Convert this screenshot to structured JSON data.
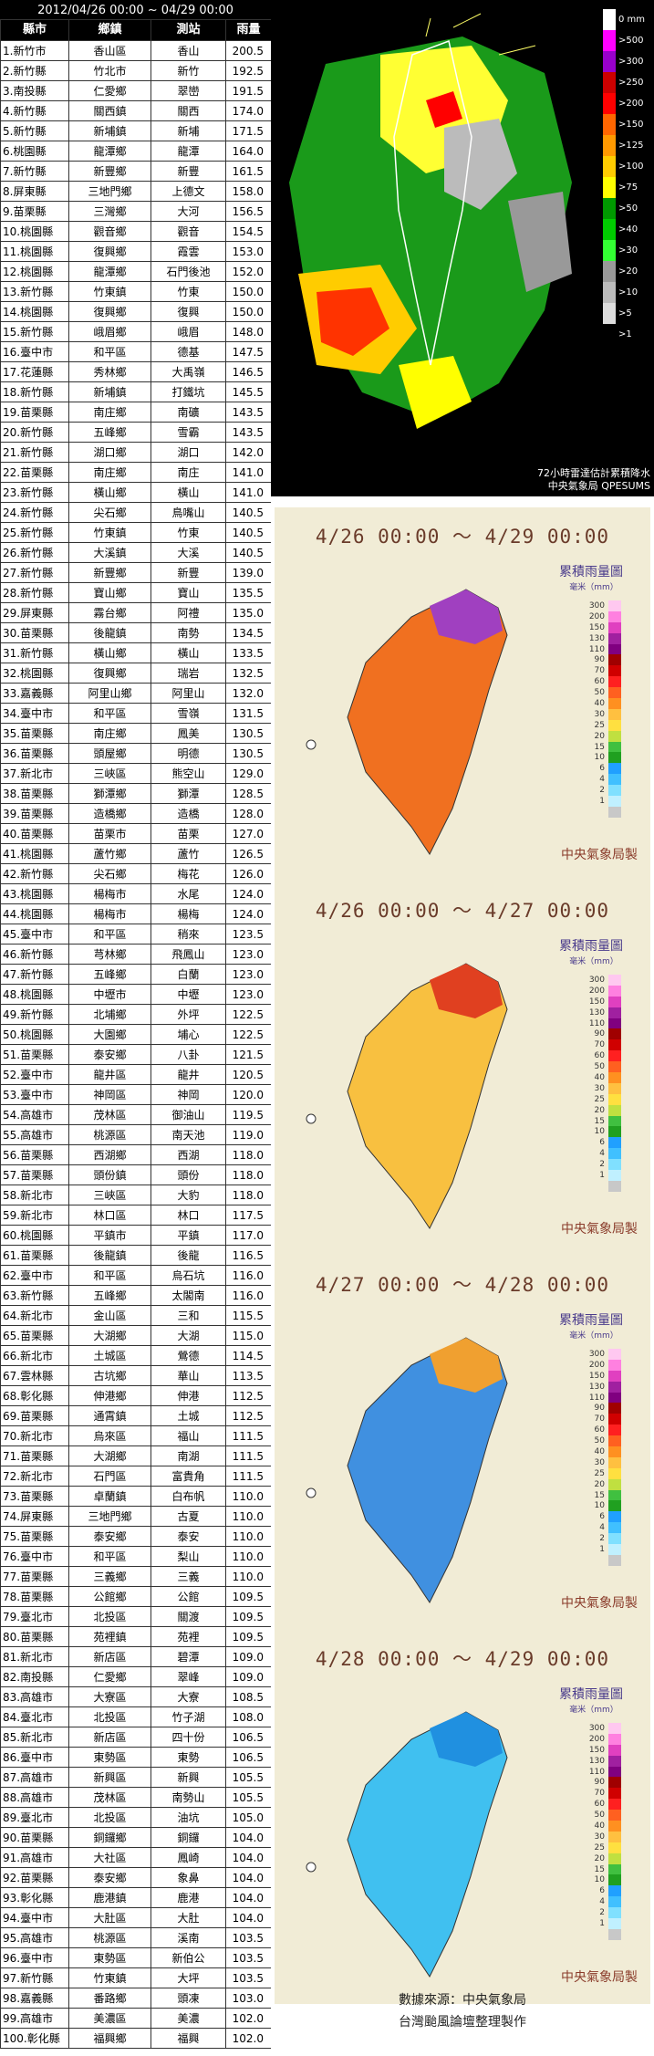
{
  "table": {
    "period": "2012/04/26 00:00 ~ 04/29 00:00",
    "headers": [
      "縣市",
      "鄉鎮",
      "測站",
      "雨量"
    ],
    "rows": [
      [
        "1.新竹市",
        "香山區",
        "香山",
        "200.5"
      ],
      [
        "2.新竹縣",
        "竹北市",
        "新竹",
        "192.5"
      ],
      [
        "3.南投縣",
        "仁愛鄉",
        "翠巒",
        "191.5"
      ],
      [
        "4.新竹縣",
        "關西鎮",
        "關西",
        "174.0"
      ],
      [
        "5.新竹縣",
        "新埔鎮",
        "新埔",
        "171.5"
      ],
      [
        "6.桃園縣",
        "龍潭鄉",
        "龍潭",
        "164.0"
      ],
      [
        "7.新竹縣",
        "新豐鄉",
        "新豐",
        "161.5"
      ],
      [
        "8.屏東縣",
        "三地門鄉",
        "上德文",
        "158.0"
      ],
      [
        "9.苗栗縣",
        "三灣鄉",
        "大河",
        "156.5"
      ],
      [
        "10.桃園縣",
        "觀音鄉",
        "觀音",
        "154.5"
      ],
      [
        "11.桃園縣",
        "復興鄉",
        "霞雲",
        "153.0"
      ],
      [
        "12.桃園縣",
        "龍潭鄉",
        "石門後池",
        "152.0"
      ],
      [
        "13.新竹縣",
        "竹東鎮",
        "竹東",
        "150.0"
      ],
      [
        "14.桃園縣",
        "復興鄉",
        "復興",
        "150.0"
      ],
      [
        "15.新竹縣",
        "峨眉鄉",
        "峨眉",
        "148.0"
      ],
      [
        "16.臺中市",
        "和平區",
        "德基",
        "147.5"
      ],
      [
        "17.花蓮縣",
        "秀林鄉",
        "大禹嶺",
        "146.5"
      ],
      [
        "18.新竹縣",
        "新埔鎮",
        "打鐵坑",
        "145.5"
      ],
      [
        "19.苗栗縣",
        "南庄鄉",
        "南礦",
        "143.5"
      ],
      [
        "20.新竹縣",
        "五峰鄉",
        "雪霸",
        "143.5"
      ],
      [
        "21.新竹縣",
        "湖口鄉",
        "湖口",
        "142.0"
      ],
      [
        "22.苗栗縣",
        "南庄鄉",
        "南庄",
        "141.0"
      ],
      [
        "23.新竹縣",
        "橫山鄉",
        "橫山",
        "141.0"
      ],
      [
        "24.新竹縣",
        "尖石鄉",
        "鳥嘴山",
        "140.5"
      ],
      [
        "25.新竹縣",
        "竹東鎮",
        "竹東",
        "140.5"
      ],
      [
        "26.新竹縣",
        "大溪鎮",
        "大溪",
        "140.5"
      ],
      [
        "27.新竹縣",
        "新豐鄉",
        "新豐",
        "139.0"
      ],
      [
        "28.新竹縣",
        "寶山鄉",
        "寶山",
        "135.5"
      ],
      [
        "29.屏東縣",
        "霧台鄉",
        "阿禮",
        "135.0"
      ],
      [
        "30.苗栗縣",
        "後龍鎮",
        "南勢",
        "134.5"
      ],
      [
        "31.新竹縣",
        "橫山鄉",
        "橫山",
        "133.5"
      ],
      [
        "32.桃園縣",
        "復興鄉",
        "瑞岩",
        "132.5"
      ],
      [
        "33.嘉義縣",
        "阿里山鄉",
        "阿里山",
        "132.0"
      ],
      [
        "34.臺中市",
        "和平區",
        "雪嶺",
        "131.5"
      ],
      [
        "35.苗栗縣",
        "南庄鄉",
        "鳳美",
        "130.5"
      ],
      [
        "36.苗栗縣",
        "頭屋鄉",
        "明德",
        "130.5"
      ],
      [
        "37.新北市",
        "三峽區",
        "熊空山",
        "129.0"
      ],
      [
        "38.苗栗縣",
        "獅潭鄉",
        "獅潭",
        "128.5"
      ],
      [
        "39.苗栗縣",
        "造橋鄉",
        "造橋",
        "128.0"
      ],
      [
        "40.苗栗縣",
        "苗栗市",
        "苗栗",
        "127.0"
      ],
      [
        "41.桃園縣",
        "蘆竹鄉",
        "蘆竹",
        "126.5"
      ],
      [
        "42.新竹縣",
        "尖石鄉",
        "梅花",
        "126.0"
      ],
      [
        "43.桃園縣",
        "楊梅市",
        "水尾",
        "124.0"
      ],
      [
        "44.桃園縣",
        "楊梅市",
        "楊梅",
        "124.0"
      ],
      [
        "45.臺中市",
        "和平區",
        "稍來",
        "123.5"
      ],
      [
        "46.新竹縣",
        "芎林鄉",
        "飛鳳山",
        "123.0"
      ],
      [
        "47.新竹縣",
        "五峰鄉",
        "白蘭",
        "123.0"
      ],
      [
        "48.桃園縣",
        "中壢市",
        "中壢",
        "123.0"
      ],
      [
        "49.新竹縣",
        "北埔鄉",
        "外坪",
        "122.5"
      ],
      [
        "50.桃園縣",
        "大園鄉",
        "埔心",
        "122.5"
      ],
      [
        "51.苗栗縣",
        "泰安鄉",
        "八卦",
        "121.5"
      ],
      [
        "52.臺中市",
        "龍井區",
        "龍井",
        "120.5"
      ],
      [
        "53.臺中市",
        "神岡區",
        "神岡",
        "120.0"
      ],
      [
        "54.高雄市",
        "茂林區",
        "御油山",
        "119.5"
      ],
      [
        "55.高雄市",
        "桃源區",
        "南天池",
        "119.0"
      ],
      [
        "56.苗栗縣",
        "西湖鄉",
        "西湖",
        "118.0"
      ],
      [
        "57.苗栗縣",
        "頭份鎮",
        "頭份",
        "118.0"
      ],
      [
        "58.新北市",
        "三峽區",
        "大豹",
        "118.0"
      ],
      [
        "59.新北市",
        "林口區",
        "林口",
        "117.5"
      ],
      [
        "60.桃園縣",
        "平鎮市",
        "平鎮",
        "117.0"
      ],
      [
        "61.苗栗縣",
        "後龍鎮",
        "後龍",
        "116.5"
      ],
      [
        "62.臺中市",
        "和平區",
        "烏石坑",
        "116.0"
      ],
      [
        "63.新竹縣",
        "五峰鄉",
        "太閣南",
        "116.0"
      ],
      [
        "64.新北市",
        "金山區",
        "三和",
        "115.5"
      ],
      [
        "65.苗栗縣",
        "大湖鄉",
        "大湖",
        "115.0"
      ],
      [
        "66.新北市",
        "土城區",
        "鶯德",
        "114.5"
      ],
      [
        "67.雲林縣",
        "古坑鄉",
        "華山",
        "113.5"
      ],
      [
        "68.彰化縣",
        "伸港鄉",
        "伸港",
        "112.5"
      ],
      [
        "69.苗栗縣",
        "通霄鎮",
        "土城",
        "112.5"
      ],
      [
        "70.新北市",
        "烏來區",
        "福山",
        "111.5"
      ],
      [
        "71.苗栗縣",
        "大湖鄉",
        "南湖",
        "111.5"
      ],
      [
        "72.新北市",
        "石門區",
        "富貴角",
        "111.5"
      ],
      [
        "73.苗栗縣",
        "卓蘭鎮",
        "白布帆",
        "110.0"
      ],
      [
        "74.屏東縣",
        "三地門鄉",
        "古夏",
        "110.0"
      ],
      [
        "75.苗栗縣",
        "泰安鄉",
        "泰安",
        "110.0"
      ],
      [
        "76.臺中市",
        "和平區",
        "梨山",
        "110.0"
      ],
      [
        "77.苗栗縣",
        "三義鄉",
        "三義",
        "110.0"
      ],
      [
        "78.苗栗縣",
        "公館鄉",
        "公館",
        "109.5"
      ],
      [
        "79.臺北市",
        "北投區",
        "關渡",
        "109.5"
      ],
      [
        "80.苗栗縣",
        "苑裡鎮",
        "苑裡",
        "109.5"
      ],
      [
        "81.新北市",
        "新店區",
        "碧潭",
        "109.0"
      ],
      [
        "82.南投縣",
        "仁愛鄉",
        "翠峰",
        "109.0"
      ],
      [
        "83.高雄市",
        "大寮區",
        "大寮",
        "108.5"
      ],
      [
        "84.臺北市",
        "北投區",
        "竹子湖",
        "108.0"
      ],
      [
        "85.新北市",
        "新店區",
        "四十份",
        "106.5"
      ],
      [
        "86.臺中市",
        "東勢區",
        "東勢",
        "106.5"
      ],
      [
        "87.高雄市",
        "新興區",
        "新興",
        "105.5"
      ],
      [
        "88.高雄市",
        "茂林區",
        "南勢山",
        "105.5"
      ],
      [
        "89.臺北市",
        "北投區",
        "油坑",
        "105.0"
      ],
      [
        "90.苗栗縣",
        "銅鑼鄉",
        "銅鑼",
        "104.0"
      ],
      [
        "91.高雄市",
        "大社區",
        "鳳崎",
        "104.0"
      ],
      [
        "92.苗栗縣",
        "泰安鄉",
        "象鼻",
        "104.0"
      ],
      [
        "93.彰化縣",
        "鹿港鎮",
        "鹿港",
        "104.0"
      ],
      [
        "94.臺中市",
        "大肚區",
        "大肚",
        "104.0"
      ],
      [
        "95.高雄市",
        "桃源區",
        "溪南",
        "103.5"
      ],
      [
        "96.臺中市",
        "東勢區",
        "新伯公",
        "103.5"
      ],
      [
        "97.新竹縣",
        "竹東鎮",
        "大坪",
        "103.5"
      ],
      [
        "98.嘉義縣",
        "番路鄉",
        "頭凍",
        "103.0"
      ],
      [
        "99.高雄市",
        "美濃區",
        "美濃",
        "102.0"
      ],
      [
        "100.彰化縣",
        "福興鄉",
        "福興",
        "102.0"
      ]
    ]
  },
  "radar": {
    "caption_line1": "72小時雷達估計累積降水",
    "caption_line2": "中央氣象局 QPESUMS",
    "legend": [
      {
        "label": "0 mm",
        "color": "#ffffff"
      },
      {
        "label": ">500",
        "color": "#ff00ff"
      },
      {
        "label": ">300",
        "color": "#9900cc"
      },
      {
        "label": ">250",
        "color": "#cc0000"
      },
      {
        "label": ">200",
        "color": "#ff0000"
      },
      {
        "label": ">150",
        "color": "#ff6600"
      },
      {
        "label": ">125",
        "color": "#ff9900"
      },
      {
        "label": ">100",
        "color": "#ffcc00"
      },
      {
        "label": ">75",
        "color": "#ffff00"
      },
      {
        "label": ">50",
        "color": "#009900"
      },
      {
        "label": ">40",
        "color": "#00cc00"
      },
      {
        "label": ">30",
        "color": "#33ff33"
      },
      {
        "label": ">20",
        "color": "#999999"
      },
      {
        "label": ">10",
        "color": "#bbbbbb"
      },
      {
        "label": ">5",
        "color": "#dddddd"
      },
      {
        "label": ">1",
        "color": "#000000"
      }
    ]
  },
  "panels": [
    {
      "title": "4/26 00:00 ～ 4/29 00:00",
      "fill": "#f07020",
      "north": "#a040c0"
    },
    {
      "title": "4/26 00:00 ～ 4/27 00:00",
      "fill": "#f8c040",
      "north": "#e04020"
    },
    {
      "title": "4/27 00:00 ～ 4/28 00:00",
      "fill": "#4090e0",
      "north": "#f0a030"
    },
    {
      "title": "4/28 00:00 ～ 4/29 00:00",
      "fill": "#40c0f0",
      "north": "#2090e0"
    }
  ],
  "panel_legend": {
    "title": "累積雨量圖",
    "unit": "毫米（mm）",
    "credit": "中央氣象局製",
    "scale": [
      {
        "label": "300",
        "color": "#ffc8f0"
      },
      {
        "label": "200",
        "color": "#ff80e0"
      },
      {
        "label": "150",
        "color": "#e040c0"
      },
      {
        "label": "130",
        "color": "#a020a0"
      },
      {
        "label": "110",
        "color": "#800080"
      },
      {
        "label": "90",
        "color": "#a00000"
      },
      {
        "label": "70",
        "color": "#d00000"
      },
      {
        "label": "60",
        "color": "#ff2020"
      },
      {
        "label": "50",
        "color": "#ff6020"
      },
      {
        "label": "40",
        "color": "#ff9020"
      },
      {
        "label": "30",
        "color": "#ffc040"
      },
      {
        "label": "25",
        "color": "#ffe040"
      },
      {
        "label": "20",
        "color": "#c0e040"
      },
      {
        "label": "15",
        "color": "#40c040"
      },
      {
        "label": "10",
        "color": "#20a020"
      },
      {
        "label": "6",
        "color": "#20a0ff"
      },
      {
        "label": "4",
        "color": "#40c0ff"
      },
      {
        "label": "2",
        "color": "#80e0ff"
      },
      {
        "label": "1",
        "color": "#c0f0ff"
      },
      {
        "label": "",
        "color": "#c8c8c8"
      }
    ]
  },
  "source": {
    "line1": "數據來源：中央氣象局",
    "line2": "台灣颱風論壇整理製作"
  }
}
